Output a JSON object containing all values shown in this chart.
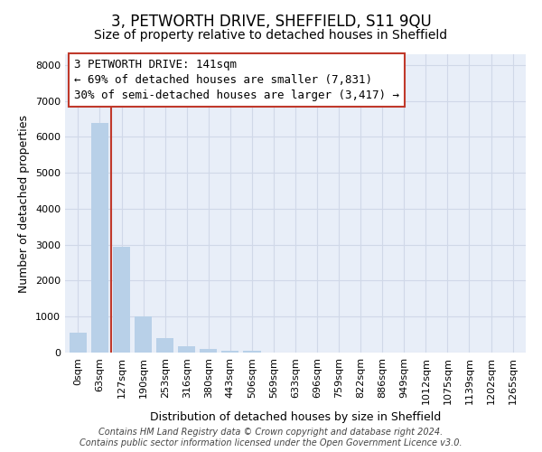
{
  "title": "3, PETWORTH DRIVE, SHEFFIELD, S11 9QU",
  "subtitle": "Size of property relative to detached houses in Sheffield",
  "xlabel": "Distribution of detached houses by size in Sheffield",
  "ylabel": "Number of detached properties",
  "categories": [
    "0sqm",
    "63sqm",
    "127sqm",
    "190sqm",
    "253sqm",
    "316sqm",
    "380sqm",
    "443sqm",
    "506sqm",
    "569sqm",
    "633sqm",
    "696sqm",
    "759sqm",
    "822sqm",
    "886sqm",
    "949sqm",
    "1012sqm",
    "1075sqm",
    "1139sqm",
    "1202sqm",
    "1265sqm"
  ],
  "values": [
    555,
    6400,
    2950,
    1000,
    400,
    175,
    100,
    50,
    50,
    0,
    0,
    0,
    0,
    0,
    0,
    0,
    0,
    0,
    0,
    0,
    0
  ],
  "bar_color_normal": "#b8d0e8",
  "vline_x": 1.5,
  "vline_color": "#c0392b",
  "annotation_text": "3 PETWORTH DRIVE: 141sqm\n← 69% of detached houses are smaller (7,831)\n30% of semi-detached houses are larger (3,417) →",
  "annotation_box_color": "#c0392b",
  "ylim": [
    0,
    8300
  ],
  "yticks": [
    0,
    1000,
    2000,
    3000,
    4000,
    5000,
    6000,
    7000,
    8000
  ],
  "grid_color": "#d0d8e8",
  "plot_bg_color": "#e8eef8",
  "footer": "Contains HM Land Registry data © Crown copyright and database right 2024.\nContains public sector information licensed under the Open Government Licence v3.0.",
  "title_fontsize": 12,
  "subtitle_fontsize": 10,
  "xlabel_fontsize": 9,
  "ylabel_fontsize": 9,
  "tick_fontsize": 8,
  "annotation_fontsize": 9,
  "footer_fontsize": 7
}
